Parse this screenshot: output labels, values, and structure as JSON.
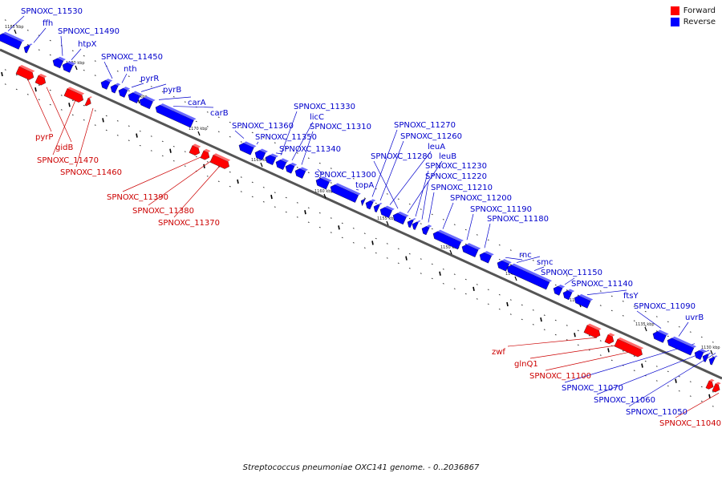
{
  "colors": {
    "forward": "#ff0000",
    "reverse": "#0000ff",
    "forward_label": "#cc0000",
    "reverse_label": "#0000cc",
    "backbone": "#555555"
  },
  "legend": [
    {
      "label": "Forward",
      "color": "#ff0000"
    },
    {
      "label": "Reverse",
      "color": "#0000ff"
    }
  ],
  "caption": "Streptococcus pneumoniae OXC141 genome. - 0..2036867",
  "scale_ticks": [
    "1185 kbp",
    "1180 kbp",
    "1175 kbp",
    "1170 kbp",
    "1165 kbp",
    "1160 kbp",
    "1155 kbp",
    "1150 kbp",
    "1145 kbp",
    "1140 kbp",
    "1135 kbp",
    "1130 kbp"
  ],
  "reverse_labels": [
    "SPNOXC_11530",
    "ffh",
    "SPNOXC_11490",
    "htpX",
    "SPNOXC_11450",
    "nth",
    "pyrR",
    "pyrB",
    "carA",
    "carB",
    "SPNOXC_11360",
    "SPNOXC_11350",
    "SPNOXC_11340",
    "SPNOXC_11330",
    "licC",
    "SPNOXC_11310",
    "SPNOXC_11300",
    "topA",
    "SPNOXC_11270",
    "SPNOXC_11260",
    "leuA",
    "SPNOXC_11280",
    "leuB",
    "SPNOXC_11230",
    "SPNOXC_11220",
    "SPNOXC_11210",
    "SPNOXC_11200",
    "SPNOXC_11190",
    "SPNOXC_11180",
    "rnc",
    "smc",
    "SPNOXC_11150",
    "SPNOXC_11140",
    "ftsY",
    "SPNOXC_11090",
    "uvrB",
    "SPNOXC_11070",
    "SPNOXC_11060",
    "SPNOXC_11050"
  ],
  "forward_labels": [
    "pyrP",
    "gidB",
    "SPNOXC_11470",
    "SPNOXC_11460",
    "SPNOXC_11390",
    "SPNOXC_11380",
    "SPNOXC_11370",
    "zwf",
    "glnQ1",
    "SPNOXC_11100",
    "SPNOXC_11040"
  ]
}
